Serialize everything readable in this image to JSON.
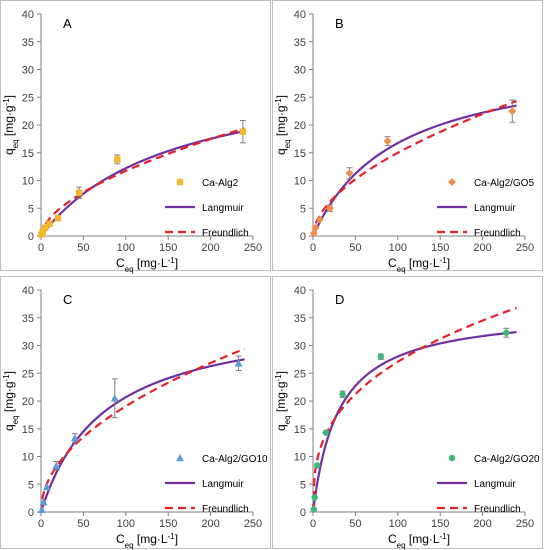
{
  "colors": {
    "langmuir": "#7030a0",
    "freundlich": "#e8202a",
    "axis": "#7f7f7f",
    "text": "#000000",
    "errorbar": "#7f7f7f"
  },
  "chart_data": [
    {
      "panel_label": "A",
      "type": "scatter",
      "xlabel": "C_eq [mg·L⁻¹]",
      "xlabel_main": "C",
      "xlabel_sub": "eq",
      "xlabel_unit": " [mg·L",
      "xlabel_sup": "-1",
      "xlabel_end": "]",
      "ylabel_main": "q",
      "ylabel_sub": "eq",
      "ylabel_unit": " [mg·g",
      "ylabel_sup": "-1",
      "ylabel_end": "]",
      "xlim": [
        0,
        250
      ],
      "ylim": [
        0,
        40
      ],
      "xticks": [
        "0",
        "50",
        "100",
        "150",
        "200",
        "250"
      ],
      "yticks": [
        "0",
        "5",
        "10",
        "15",
        "20",
        "25",
        "30",
        "35",
        "40"
      ],
      "legend_position": "right",
      "series": [
        {
          "name": "Ca-Alg2",
          "kind": "points",
          "marker": "square",
          "color": "#f6b52c",
          "x": [
            0.5,
            2,
            5,
            10,
            20,
            45,
            90,
            238
          ],
          "y": [
            0.3,
            0.8,
            1.5,
            2.2,
            3.2,
            7.8,
            13.8,
            18.8
          ],
          "err": [
            0,
            0,
            0,
            0,
            0,
            1.0,
            0.8,
            2.0
          ]
        },
        {
          "name": "Langmuir",
          "kind": "line",
          "style": "solid",
          "color": "#7030a0",
          "model": "langmuir",
          "params": {
            "qmax": 31.0,
            "K": 0.0065
          }
        },
        {
          "name": "Freundlich",
          "kind": "line",
          "style": "dashed",
          "color": "#e8202a",
          "model": "freundlich",
          "params": {
            "Kf": 0.83,
            "n": 0.575
          }
        }
      ]
    },
    {
      "panel_label": "B",
      "type": "scatter",
      "xlabel_main": "C",
      "xlabel_sub": "eq",
      "xlabel_unit": " [mg·L",
      "xlabel_sup": "-1",
      "xlabel_end": "]",
      "ylabel_main": "q",
      "ylabel_sub": "eq",
      "ylabel_unit": " [mg·g",
      "ylabel_sup": "-1",
      "ylabel_end": "]",
      "xlim": [
        0,
        250
      ],
      "ylim": [
        0,
        40
      ],
      "xticks": [
        "0",
        "50",
        "100",
        "150",
        "200",
        "250"
      ],
      "yticks": [
        "0",
        "5",
        "10",
        "15",
        "20",
        "25",
        "30",
        "35",
        "40"
      ],
      "legend_position": "right",
      "series": [
        {
          "name": "Ca-Alg2/GO5",
          "kind": "points",
          "marker": "diamond",
          "color": "#f08c4a",
          "x": [
            1,
            3,
            8,
            20,
            43,
            88,
            235
          ],
          "y": [
            0.5,
            1.5,
            3.0,
            5.0,
            11.3,
            17.1,
            22.5
          ],
          "err": [
            0,
            0,
            0,
            0.6,
            1.0,
            0.8,
            2.0
          ]
        },
        {
          "name": "Langmuir",
          "kind": "line",
          "style": "solid",
          "color": "#7030a0",
          "model": "langmuir",
          "params": {
            "qmax": 33.0,
            "K": 0.0103
          }
        },
        {
          "name": "Freundlich",
          "kind": "line",
          "style": "dashed",
          "color": "#e8202a",
          "model": "freundlich",
          "params": {
            "Kf": 1.18,
            "n": 0.552
          }
        }
      ]
    },
    {
      "panel_label": "C",
      "type": "scatter",
      "xlabel_main": "C",
      "xlabel_sub": "eq",
      "xlabel_unit": " [mg·L",
      "xlabel_sup": "-1",
      "xlabel_end": "]",
      "ylabel_main": "q",
      "ylabel_sub": "eq",
      "ylabel_unit": " [mg·g",
      "ylabel_sup": "-1",
      "ylabel_end": "]",
      "xlim": [
        0,
        250
      ],
      "ylim": [
        0,
        40
      ],
      "xticks": [
        "0",
        "50",
        "100",
        "150",
        "200",
        "250"
      ],
      "yticks": [
        "0",
        "5",
        "10",
        "15",
        "20",
        "25",
        "30",
        "35",
        "40"
      ],
      "legend_position": "right",
      "series": [
        {
          "name": "Ca-Alg2/GO10",
          "kind": "points",
          "marker": "triangle",
          "color": "#5b9bd5",
          "x": [
            1,
            3,
            7,
            18,
            40,
            87,
            233
          ],
          "y": [
            0.4,
            1.8,
            4.5,
            8.3,
            13.3,
            20.5,
            26.8
          ],
          "err": [
            0,
            0,
            0,
            0.8,
            0.8,
            3.5,
            1.3
          ]
        },
        {
          "name": "Langmuir",
          "kind": "line",
          "style": "solid",
          "color": "#7030a0",
          "model": "langmuir",
          "params": {
            "qmax": 36.0,
            "K": 0.0135
          }
        },
        {
          "name": "Freundlich",
          "kind": "line",
          "style": "dashed",
          "color": "#e8202a",
          "model": "freundlich",
          "params": {
            "Kf": 1.95,
            "n": 0.495
          }
        }
      ]
    },
    {
      "panel_label": "D",
      "type": "scatter",
      "xlabel_main": "C",
      "xlabel_sub": "eq",
      "xlabel_unit": " [mg·L",
      "xlabel_sup": "-1",
      "xlabel_end": "]",
      "ylabel_main": "q",
      "ylabel_sub": "eq",
      "ylabel_unit": " [mg·g",
      "ylabel_sup": "-1",
      "ylabel_end": "]",
      "xlim": [
        0,
        250
      ],
      "ylim": [
        0,
        40
      ],
      "xticks": [
        "0",
        "50",
        "100",
        "150",
        "200",
        "250"
      ],
      "yticks": [
        "0",
        "5",
        "10",
        "15",
        "20",
        "25",
        "30",
        "35",
        "40"
      ],
      "legend_position": "right",
      "series": [
        {
          "name": "Ca-Alg2/GO20",
          "kind": "points",
          "marker": "circle",
          "color": "#3cb878",
          "x": [
            1,
            2,
            5,
            15,
            35,
            80,
            228
          ],
          "y": [
            0.5,
            2.6,
            8.4,
            14.3,
            21.2,
            28.0,
            32.3
          ],
          "err": [
            0,
            0,
            0,
            0,
            0.6,
            0.5,
            0.8
          ]
        },
        {
          "name": "Langmuir",
          "kind": "line",
          "style": "solid",
          "color": "#7030a0",
          "model": "langmuir",
          "params": {
            "qmax": 36.5,
            "K": 0.033
          }
        },
        {
          "name": "Freundlich",
          "kind": "line",
          "style": "dashed",
          "color": "#e8202a",
          "model": "freundlich",
          "params": {
            "Kf": 5.4,
            "n": 0.35
          }
        }
      ]
    }
  ]
}
